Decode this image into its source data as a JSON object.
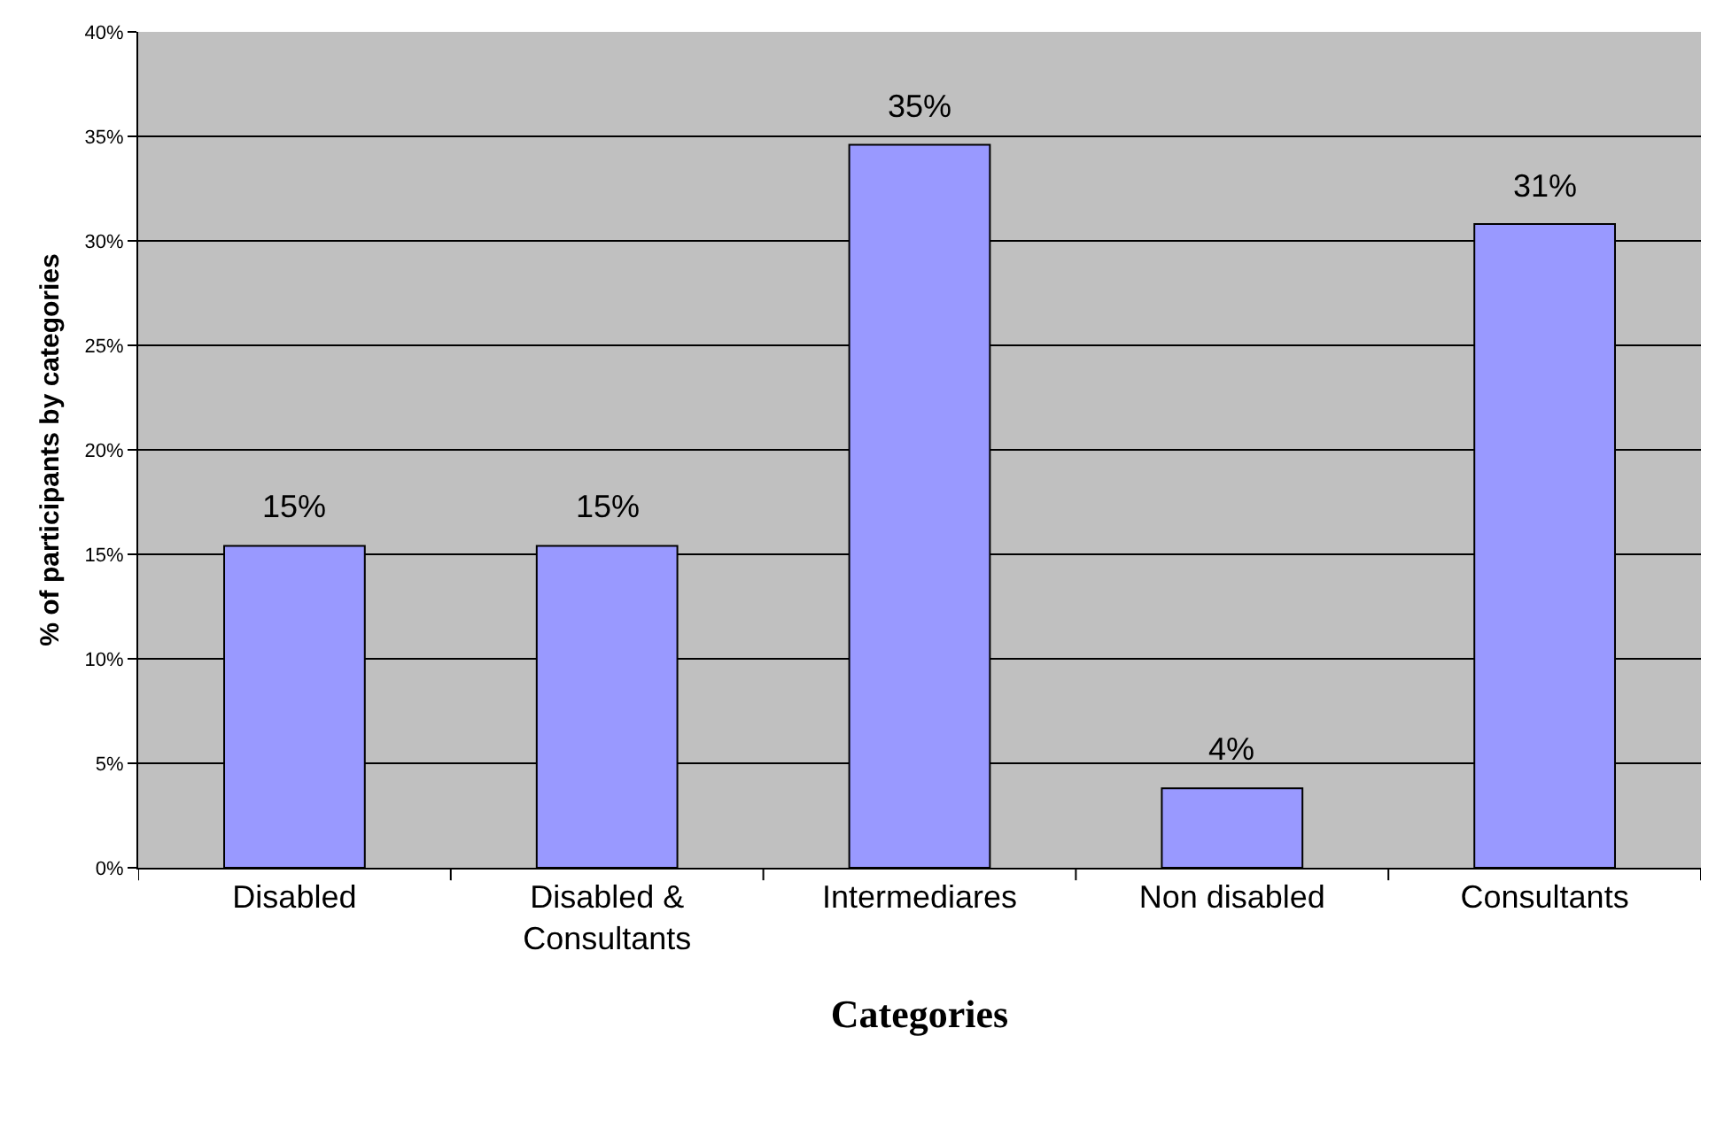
{
  "chart_data": {
    "type": "bar",
    "xlabel": "Categories",
    "ylabel": "% of participants by categories",
    "categories": [
      "Disabled",
      "Disabled & Consultants",
      "Intermediares",
      "Non disabled",
      "Consultants"
    ],
    "values": [
      15.4,
      15.4,
      34.6,
      3.8,
      30.8
    ],
    "value_labels": [
      "15%",
      "15%",
      "35%",
      "4%",
      "31%"
    ],
    "color": "#9999ff",
    "ylim": [
      0,
      40
    ],
    "yticks": [
      {
        "value": 0,
        "label": "0%"
      },
      {
        "value": 5,
        "label": "5%"
      },
      {
        "value": 10,
        "label": "10%"
      },
      {
        "value": 15,
        "label": "15%"
      },
      {
        "value": 20,
        "label": "20%"
      },
      {
        "value": 25,
        "label": "25%"
      },
      {
        "value": 30,
        "label": "30%"
      },
      {
        "value": 35,
        "label": "35%"
      },
      {
        "value": 40,
        "label": "40%"
      }
    ],
    "grid": "y",
    "legend": false
  }
}
